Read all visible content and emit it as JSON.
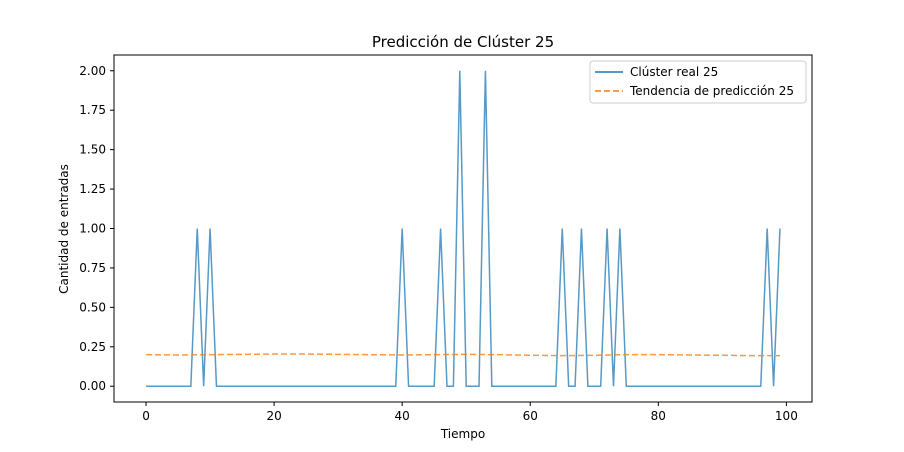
{
  "chart_data": {
    "type": "line",
    "title": "Predicción de Clúster 25",
    "xlabel": "Tiempo",
    "ylabel": "Cantidad de entradas",
    "xlim": [
      -5,
      104
    ],
    "ylim": [
      -0.1,
      2.1
    ],
    "x_ticks": [
      0,
      20,
      40,
      60,
      80,
      100
    ],
    "y_ticks": [
      0.0,
      0.25,
      0.5,
      0.75,
      1.0,
      1.25,
      1.5,
      1.75,
      2.0
    ],
    "x_tick_labels": [
      "0",
      "20",
      "40",
      "60",
      "80",
      "100"
    ],
    "y_tick_labels": [
      "0.00",
      "0.25",
      "0.50",
      "0.75",
      "1.00",
      "1.25",
      "1.50",
      "1.75",
      "2.00"
    ],
    "legend_position": "top-right",
    "grid": false,
    "series": [
      {
        "name": "Clúster real 25",
        "color": "#1f77b4",
        "style": "solid",
        "x": [
          0,
          1,
          2,
          3,
          4,
          5,
          6,
          7,
          8,
          9,
          10,
          11,
          12,
          13,
          14,
          15,
          16,
          17,
          18,
          19,
          20,
          21,
          22,
          23,
          24,
          25,
          26,
          27,
          28,
          29,
          30,
          31,
          32,
          33,
          34,
          35,
          36,
          37,
          38,
          39,
          40,
          41,
          42,
          43,
          44,
          45,
          46,
          47,
          48,
          49,
          50,
          51,
          52,
          53,
          54,
          55,
          56,
          57,
          58,
          59,
          60,
          61,
          62,
          63,
          64,
          65,
          66,
          67,
          68,
          69,
          70,
          71,
          72,
          73,
          74,
          75,
          76,
          77,
          78,
          79,
          80,
          81,
          82,
          83,
          84,
          85,
          86,
          87,
          88,
          89,
          90,
          91,
          92,
          93,
          94,
          95,
          96,
          97,
          98,
          99
        ],
        "y": [
          0,
          0,
          0,
          0,
          0,
          0,
          0,
          0,
          1,
          0,
          1,
          0,
          0,
          0,
          0,
          0,
          0,
          0,
          0,
          0,
          0,
          0,
          0,
          0,
          0,
          0,
          0,
          0,
          0,
          0,
          0,
          0,
          0,
          0,
          0,
          0,
          0,
          0,
          0,
          0,
          1,
          0,
          0,
          0,
          0,
          0,
          1,
          0,
          0,
          2,
          0,
          0,
          0,
          2,
          0,
          0,
          0,
          0,
          0,
          0,
          0,
          0,
          0,
          0,
          0,
          1,
          0,
          0,
          1,
          0,
          0,
          0,
          1,
          0,
          1,
          0,
          0,
          0,
          0,
          0,
          0,
          0,
          0,
          0,
          0,
          0,
          0,
          0,
          0,
          0,
          0,
          0,
          0,
          0,
          0,
          0,
          0,
          1,
          0,
          1
        ]
      },
      {
        "name": "Tendencia de predicción 25",
        "color": "#ff7f0e",
        "style": "dashed",
        "x": [
          0,
          5,
          10,
          15,
          20,
          25,
          30,
          35,
          40,
          45,
          50,
          55,
          60,
          65,
          70,
          75,
          80,
          85,
          90,
          95,
          99
        ],
        "y": [
          0.2,
          0.198,
          0.2,
          0.202,
          0.204,
          0.204,
          0.202,
          0.2,
          0.198,
          0.2,
          0.202,
          0.2,
          0.196,
          0.194,
          0.196,
          0.2,
          0.2,
          0.198,
          0.196,
          0.194,
          0.194
        ]
      }
    ]
  }
}
